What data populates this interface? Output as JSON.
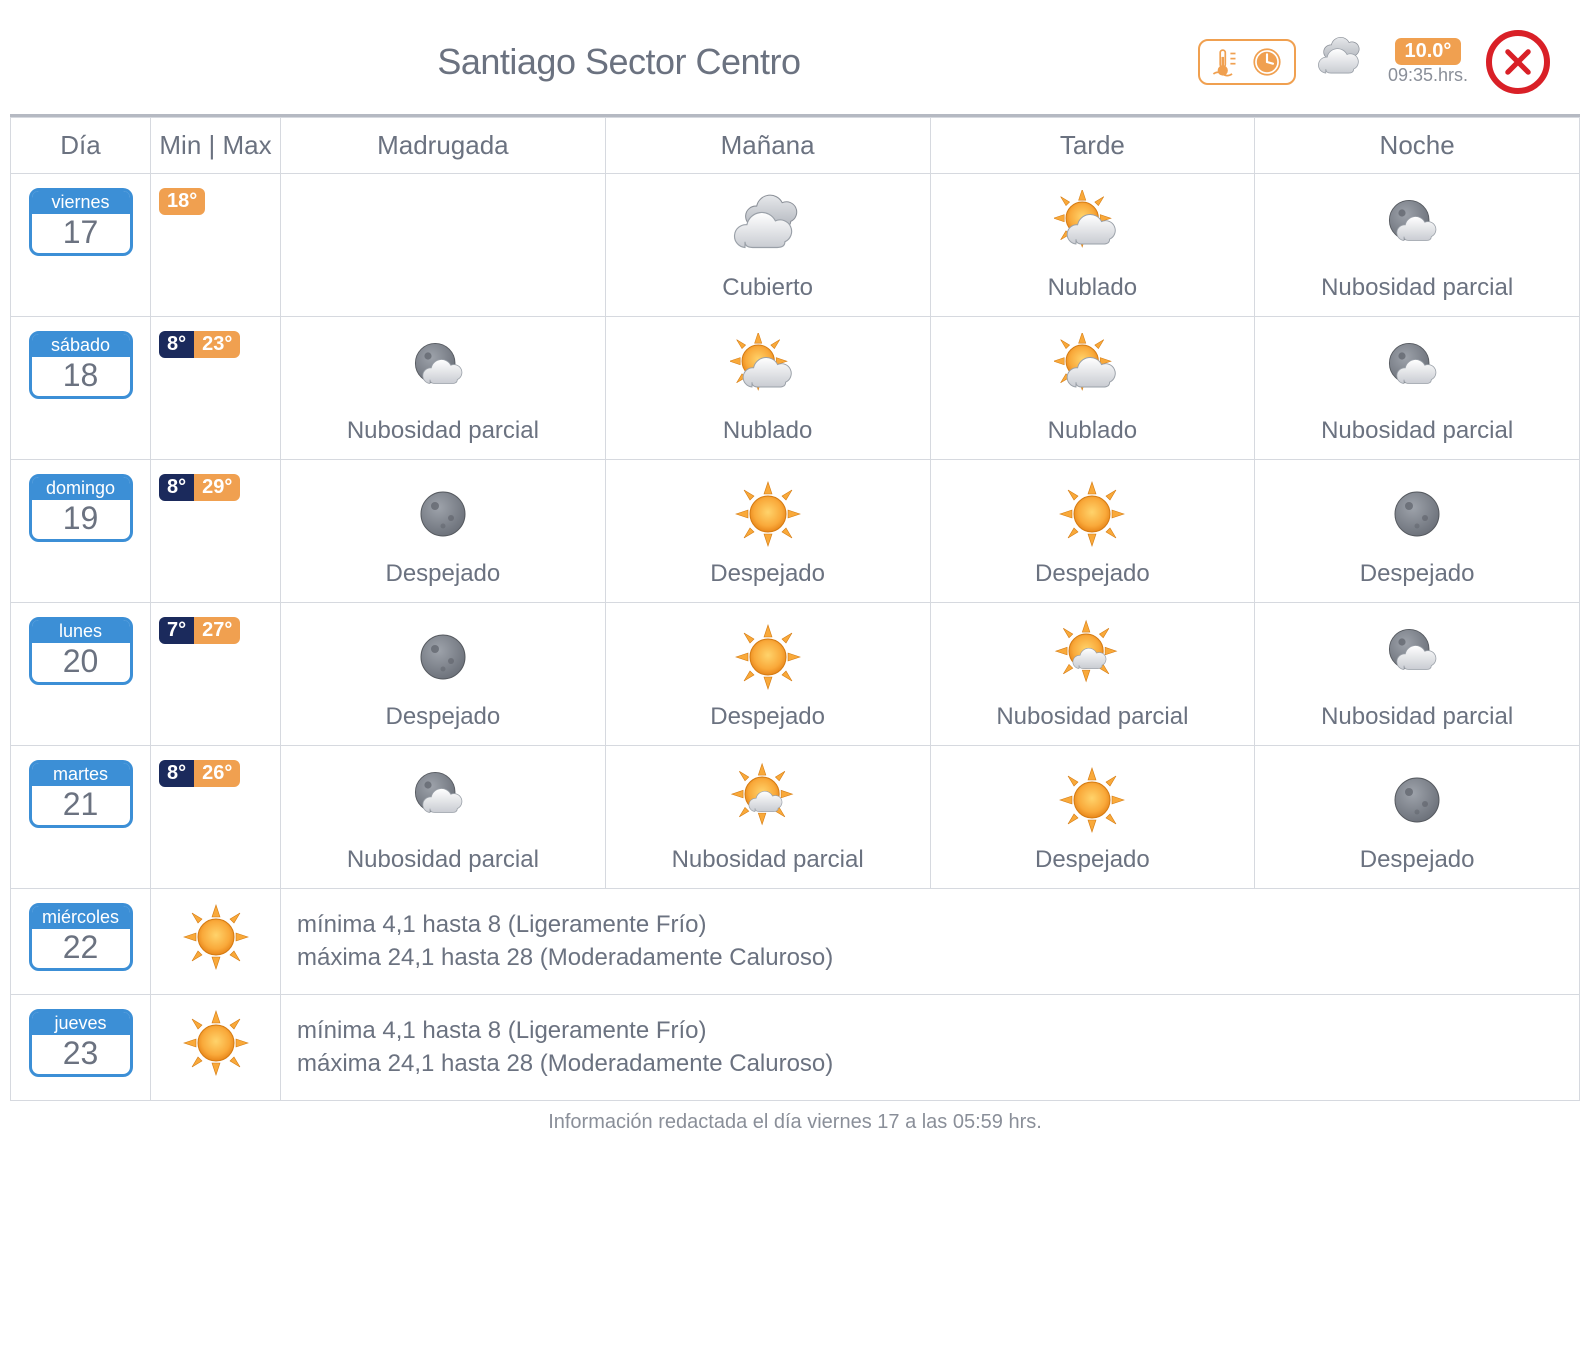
{
  "header": {
    "title": "Santiago Sector Centro",
    "current": {
      "temp": "10.0°",
      "time": "09:35.hrs."
    }
  },
  "columns": {
    "day": "Día",
    "minmax": "Min | Max",
    "periods": [
      "Madrugada",
      "Mañana",
      "Tarde",
      "Noche"
    ]
  },
  "icons": {
    "cubierto": "cloudy",
    "nublado": "partly_cloudy_day",
    "nubosidad_parcial_day": "sun_small_cloud",
    "nubosidad_parcial_night": "moon_cloud",
    "despejado_day": "sun",
    "despejado_night": "moon"
  },
  "days": [
    {
      "dow": "viernes",
      "num": "17",
      "min": null,
      "max": "18°",
      "periods": [
        null,
        {
          "label": "Cubierto",
          "icon": "cloudy"
        },
        {
          "label": "Nublado",
          "icon": "partly_cloudy_day"
        },
        {
          "label": "Nubosidad parcial",
          "icon": "moon_cloud"
        }
      ]
    },
    {
      "dow": "sábado",
      "num": "18",
      "min": "8°",
      "max": "23°",
      "periods": [
        {
          "label": "Nubosidad parcial",
          "icon": "moon_cloud"
        },
        {
          "label": "Nublado",
          "icon": "partly_cloudy_day"
        },
        {
          "label": "Nublado",
          "icon": "partly_cloudy_day"
        },
        {
          "label": "Nubosidad parcial",
          "icon": "moon_cloud"
        }
      ]
    },
    {
      "dow": "domingo",
      "num": "19",
      "min": "8°",
      "max": "29°",
      "periods": [
        {
          "label": "Despejado",
          "icon": "moon"
        },
        {
          "label": "Despejado",
          "icon": "sun"
        },
        {
          "label": "Despejado",
          "icon": "sun"
        },
        {
          "label": "Despejado",
          "icon": "moon"
        }
      ]
    },
    {
      "dow": "lunes",
      "num": "20",
      "min": "7°",
      "max": "27°",
      "periods": [
        {
          "label": "Despejado",
          "icon": "moon"
        },
        {
          "label": "Despejado",
          "icon": "sun"
        },
        {
          "label": "Nubosidad parcial",
          "icon": "sun_small_cloud"
        },
        {
          "label": "Nubosidad parcial",
          "icon": "moon_cloud"
        }
      ]
    },
    {
      "dow": "martes",
      "num": "21",
      "min": "8°",
      "max": "26°",
      "periods": [
        {
          "label": "Nubosidad parcial",
          "icon": "moon_cloud"
        },
        {
          "label": "Nubosidad parcial",
          "icon": "sun_small_cloud"
        },
        {
          "label": "Despejado",
          "icon": "sun"
        },
        {
          "label": "Despejado",
          "icon": "moon"
        }
      ]
    }
  ],
  "summary_days": [
    {
      "dow": "miércoles",
      "num": "22",
      "icon": "sun",
      "line1": "mínima 4,1 hasta 8 (Ligeramente Frío)",
      "line2": "máxima 24,1 hasta 28 (Moderadamente Caluroso)"
    },
    {
      "dow": "jueves",
      "num": "23",
      "icon": "sun",
      "line1": "mínima 4,1 hasta 8 (Ligeramente Frío)",
      "line2": "máxima 24,1 hasta 28 (Moderadamente Caluroso)"
    }
  ],
  "footer": "Información redactada el día viernes 17 a las 05:59 hrs.",
  "colors": {
    "accent_blue": "#3c8fd6",
    "accent_orange": "#f0a050",
    "dark_navy": "#1b2a5c",
    "red": "#d92027",
    "text": "#6b7280",
    "border": "#d6d9df",
    "top_border": "#b5b9c2"
  }
}
